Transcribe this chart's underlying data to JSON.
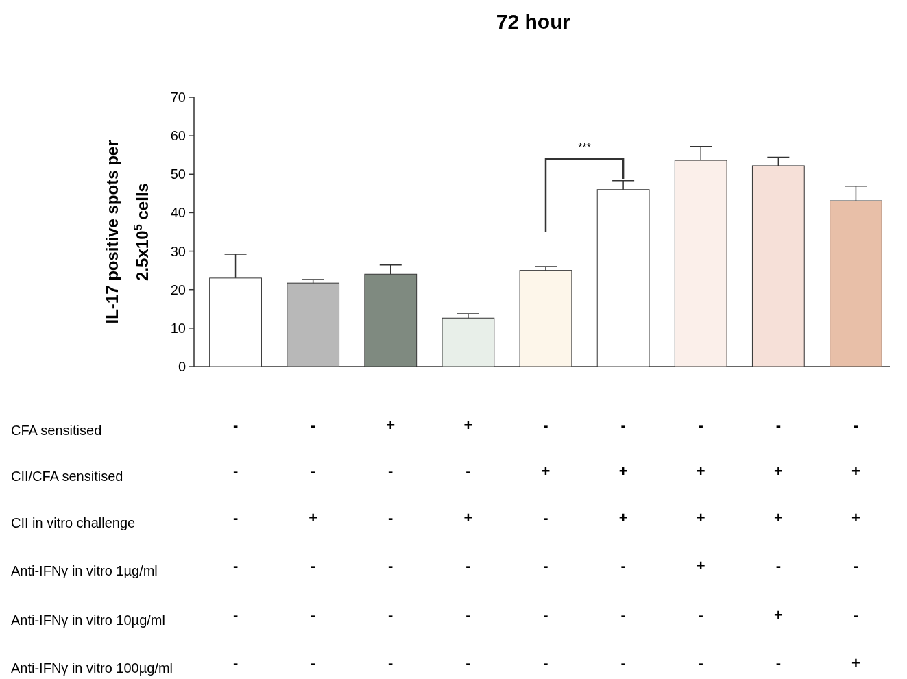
{
  "chart_data": {
    "type": "bar",
    "title": "72 hour",
    "ylabel": "IL-17 positive spots per\n2.5x10$^{5}$ cells",
    "categories": [
      "-\n-\n-\n-\n-\n-",
      "-\n-\n+\n-\n-\n-",
      "+\n-\n-\n-\n-\n-",
      "+\n-\n+\n-\n-\n-",
      "-\n+\n-\n-\n-\n-",
      "-\n+\n+\n-\n-\n-",
      "-\n+\n+\n+\n-\n-",
      "-\n+\n+\n-\n+\n-",
      "-\n+\n+\n-\n-\n+"
    ],
    "values": [
      23,
      21.7,
      24,
      12.6,
      25,
      46,
      53.6,
      52.2,
      43.1
    ],
    "errors": [
      6.2,
      0.9,
      2.4,
      1.1,
      1.0,
      2.3,
      3.6,
      2.2,
      3.8
    ],
    "colors": [
      "#ffffff",
      "#b8b8b8",
      "#7f8a80",
      "#e8efe9",
      "#fdf6ea",
      "#ffffff",
      "#fbefea",
      "#f6e0d8",
      "#e8bfa8"
    ],
    "ylim": [
      0,
      70
    ],
    "yticks": [
      0,
      10,
      20,
      30,
      40,
      50,
      60,
      70
    ],
    "grid": false,
    "annotations": [
      "***",
      "CFA sensitised",
      "CII/CFA sensitised",
      "CII in vitro challenge",
      "Anti-IFNγ in vitro 1µg/ml",
      "Anti-IFNγ in vitro 10µg/ml",
      "Anti-IFNγ in vitro 100µg/ml"
    ]
  }
}
